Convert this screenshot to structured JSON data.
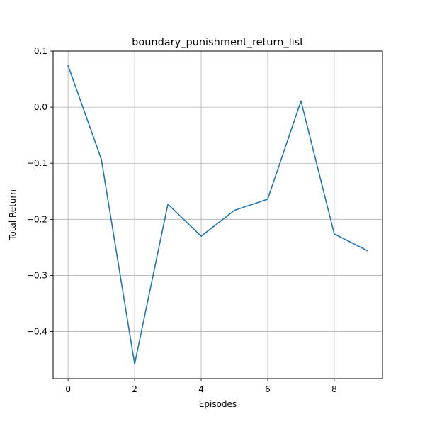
{
  "chart_data": {
    "type": "line",
    "title": "boundary_punishment_return_list",
    "xlabel": "Episodes",
    "ylabel": "Total Return",
    "x": [
      0,
      1,
      2,
      3,
      4,
      5,
      6,
      7,
      8,
      9
    ],
    "series": [
      {
        "values": [
          0.074,
          -0.093,
          -0.458,
          -0.173,
          -0.23,
          -0.184,
          -0.164,
          0.011,
          -0.226,
          -0.256
        ],
        "color": "#1f77b4"
      }
    ],
    "xlim": [
      -0.45,
      9.45
    ],
    "ylim": [
      -0.484,
      0.1
    ],
    "xticks": [
      0,
      2,
      4,
      6,
      8
    ],
    "xtick_labels": [
      "0",
      "2",
      "4",
      "6",
      "8"
    ],
    "yticks": [
      0.1,
      0.0,
      -0.1,
      -0.2,
      -0.3,
      -0.4
    ],
    "ytick_labels": [
      "0.1",
      "0.0",
      "−0.1",
      "−0.2",
      "−0.3",
      "−0.4"
    ],
    "grid": true,
    "legend": "none"
  }
}
